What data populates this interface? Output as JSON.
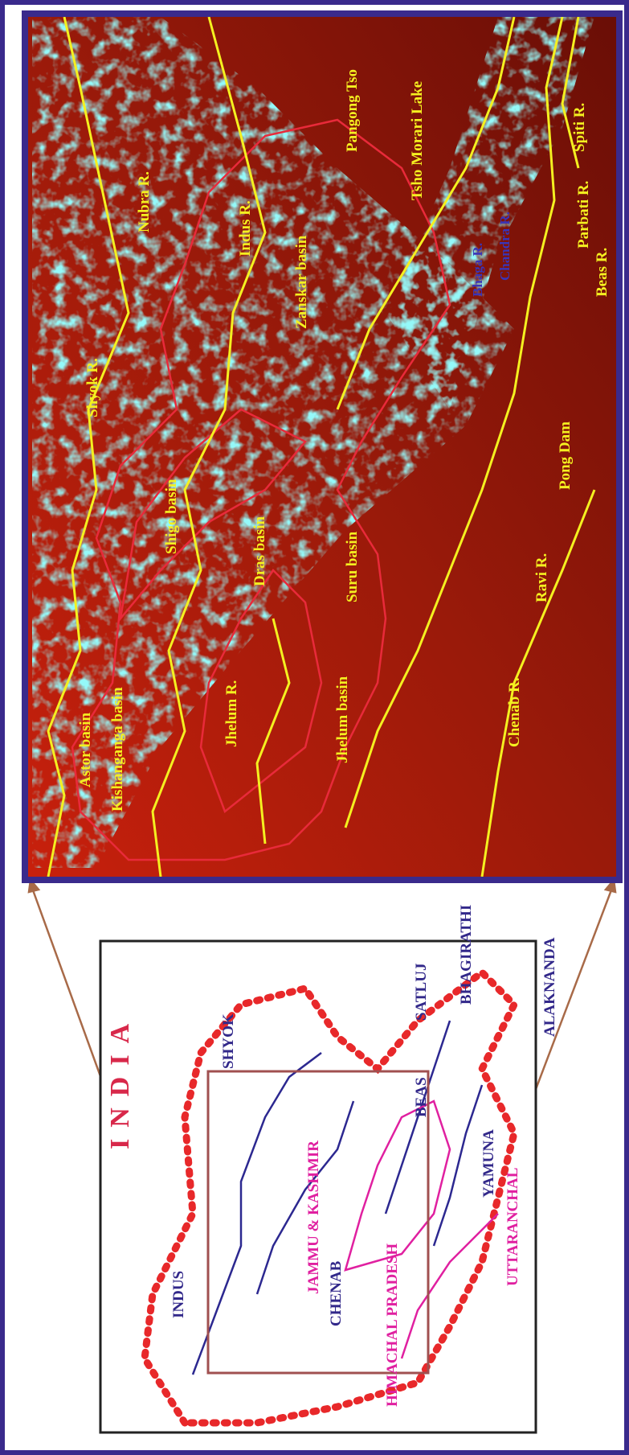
{
  "satellite_labels": [
    "Astor basin",
    "Kishanganga basin",
    "Jhelum R.",
    "Jhelum basin",
    "Dras basin",
    "Suru basin",
    "Shigo basin",
    "Shyok R.",
    "Nubra R.",
    "Indus R.",
    "Zanskar basin",
    "Pangong Tso",
    "Tsho Morari Lake",
    "Spiti R.",
    "Chandra R.",
    "Bhaga R.",
    "Parbati R.",
    "Beas R.",
    "Pong Dam",
    "Ravi R.",
    "Chenab R."
  ],
  "inset": {
    "title": "INDIA",
    "rivers": [
      "SHYOK",
      "INDUS",
      "CHENAB",
      "BEAS",
      "SATLUJ",
      "BHAGIRATHI",
      "YAMUNA",
      "ALAKNANDA"
    ],
    "states": [
      "JAMMU & KASHMIR",
      "HIMACHAL PRADESH",
      "UTTARANCHAL"
    ]
  }
}
